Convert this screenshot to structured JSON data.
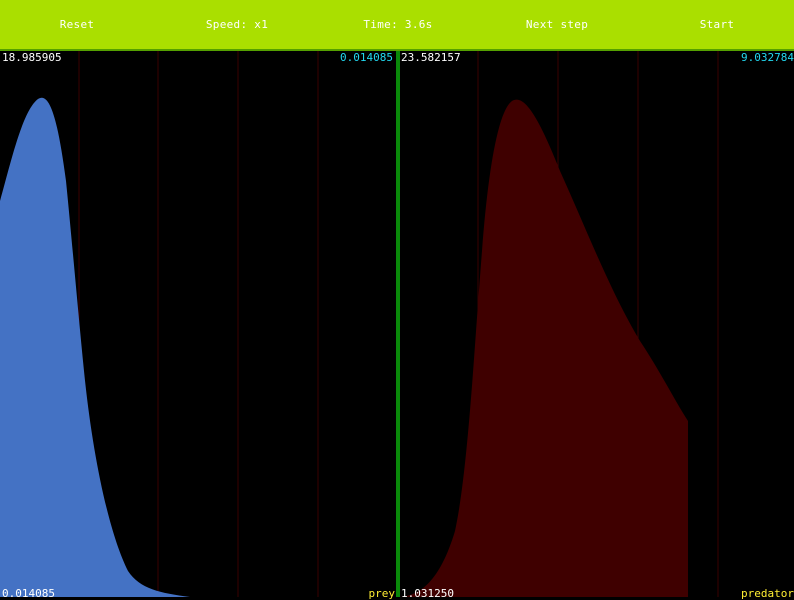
{
  "toolbar": {
    "reset": "Reset",
    "speed": "Speed: x1",
    "time": "Time: 3.6s",
    "next_step": "Next step",
    "start": "Start"
  },
  "left_panel": {
    "y_max": "18.985905",
    "y_min": "0.014085",
    "right_value": "0.014085",
    "name": "prey",
    "fill_color": "#4472c4"
  },
  "right_panel": {
    "y_max": "23.582157",
    "right_value": "9.032784",
    "bottom_value": "1.031250",
    "name": "predator",
    "fill_color": "#3f0000"
  },
  "colors": {
    "toolbar": "#aadf00",
    "divider": "#0a8a0a",
    "grid": "#3a0000",
    "label_white": "#ffffff",
    "label_cyan": "#22d8f0",
    "label_yellow": "#ffee33"
  }
}
